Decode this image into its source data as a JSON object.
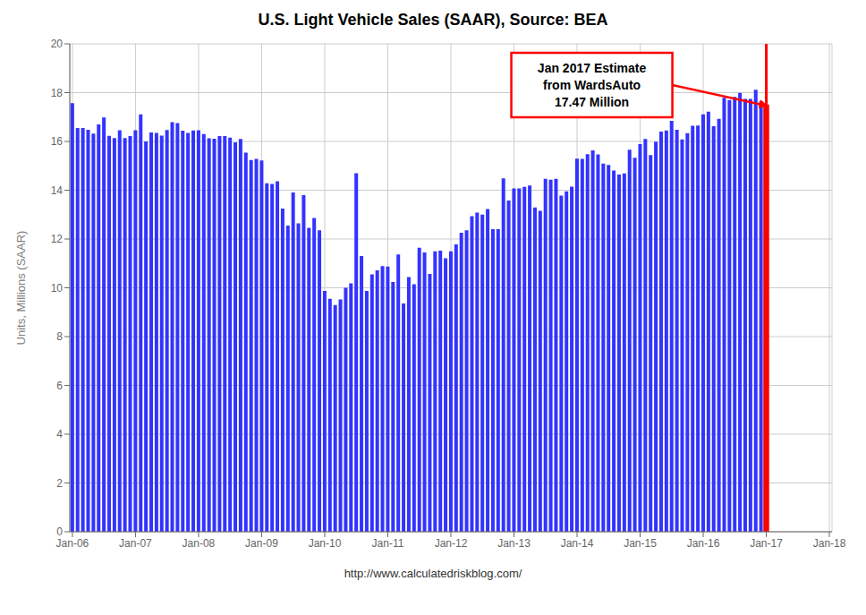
{
  "chart_data": {
    "type": "bar",
    "title": "U.S. Light Vehicle Sales (SAAR), Source: BEA",
    "ylabel": "Units, Millions (SAAR)",
    "annotation": {
      "text": "Jan 2017 Estimate\nfrom WardsAuto\n17.47 Million",
      "color": "#FF0000"
    },
    "footer": "http://www.calculatedriskblog.com/",
    "color": "#3333FF",
    "grid": true,
    "ylim": [
      0,
      20
    ],
    "yticks": [
      0,
      2,
      4,
      6,
      8,
      10,
      12,
      14,
      16,
      18,
      20
    ],
    "categories": [
      "Jan-06",
      null,
      null,
      null,
      null,
      null,
      null,
      null,
      null,
      null,
      null,
      null,
      "Jan-07",
      null,
      null,
      null,
      null,
      null,
      null,
      null,
      null,
      null,
      null,
      null,
      "Jan-08",
      null,
      null,
      null,
      null,
      null,
      null,
      null,
      null,
      null,
      null,
      null,
      "Jan-09",
      null,
      null,
      null,
      null,
      null,
      null,
      null,
      null,
      null,
      null,
      null,
      "Jan-10",
      null,
      null,
      null,
      null,
      null,
      null,
      null,
      null,
      null,
      null,
      null,
      "Jan-11",
      null,
      null,
      null,
      null,
      null,
      null,
      null,
      null,
      null,
      null,
      null,
      "Jan-12",
      null,
      null,
      null,
      null,
      null,
      null,
      null,
      null,
      null,
      null,
      null,
      "Jan-13",
      null,
      null,
      null,
      null,
      null,
      null,
      null,
      null,
      null,
      null,
      null,
      "Jan-14",
      null,
      null,
      null,
      null,
      null,
      null,
      null,
      null,
      null,
      null,
      null,
      "Jan-15",
      null,
      null,
      null,
      null,
      null,
      null,
      null,
      null,
      null,
      null,
      null,
      "Jan-16",
      null,
      null,
      null,
      null,
      null,
      null,
      null,
      null,
      null,
      null,
      null,
      "Jan-17",
      null,
      null,
      null,
      null,
      null,
      null,
      null,
      null,
      null,
      null,
      null,
      "Jan-18"
    ],
    "values": [
      17.57,
      16.55,
      16.55,
      16.48,
      16.32,
      16.7,
      16.98,
      16.23,
      16.14,
      16.46,
      16.14,
      16.22,
      16.46,
      17.11,
      16.0,
      16.37,
      16.35,
      16.24,
      16.47,
      16.79,
      16.75,
      16.44,
      16.35,
      16.45,
      16.46,
      16.3,
      16.13,
      16.11,
      16.22,
      16.22,
      16.16,
      15.96,
      16.1,
      15.54,
      15.24,
      15.28,
      15.22,
      14.28,
      14.26,
      14.37,
      13.25,
      12.55,
      13.91,
      12.64,
      13.8,
      12.46,
      12.86,
      12.36,
      9.87,
      9.55,
      9.29,
      9.52,
      10.0,
      10.18,
      14.7,
      11.3,
      9.87,
      10.55,
      10.72,
      10.89,
      10.87,
      10.24,
      11.37,
      9.36,
      10.44,
      10.15,
      11.64,
      11.45,
      10.57,
      11.5,
      11.52,
      11.21,
      11.5,
      11.78,
      12.26,
      12.36,
      12.94,
      13.08,
      13.0,
      13.23,
      12.4,
      12.4,
      14.49,
      13.58,
      14.07,
      14.07,
      14.14,
      14.19,
      13.29,
      13.16,
      14.47,
      14.43,
      14.47,
      13.78,
      13.95,
      14.15,
      15.29,
      15.28,
      15.48,
      15.63,
      15.47,
      15.09,
      15.04,
      14.81,
      14.64,
      14.69,
      15.66,
      15.33,
      15.89,
      16.1,
      15.44,
      15.99,
      16.4,
      16.45,
      16.84,
      16.48,
      16.08,
      16.34,
      16.64,
      16.65,
      17.11,
      17.22,
      16.62,
      16.93,
      17.79,
      17.7,
      17.83,
      17.99,
      17.74,
      17.74,
      18.12,
      17.66,
      17.47,
      null,
      null,
      null,
      null,
      null,
      null,
      null,
      null,
      null,
      null,
      null,
      null
    ]
  }
}
